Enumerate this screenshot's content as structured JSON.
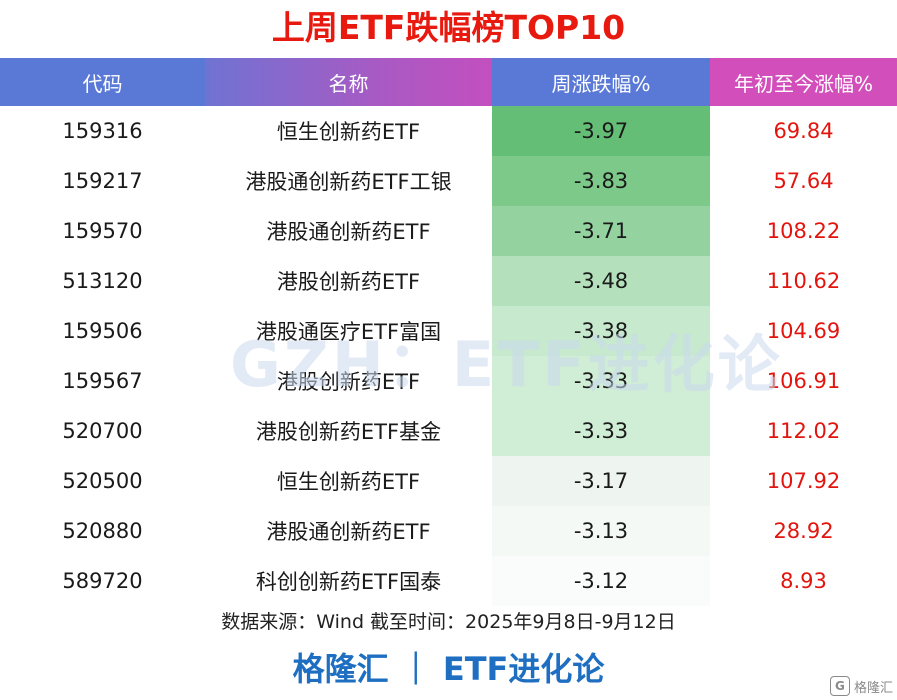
{
  "title": "上周ETF跌幅榜TOP10",
  "table": {
    "headers": [
      "代码",
      "名称",
      "周涨跌幅%",
      "年初至今涨幅%"
    ],
    "rows": [
      {
        "code": "159316",
        "name": "恒生创新药ETF",
        "week": "-3.97",
        "ytd": "69.84",
        "shade": "#64be75"
      },
      {
        "code": "159217",
        "name": "港股通创新药ETF工银",
        "week": "-3.83",
        "ytd": "57.64",
        "shade": "#7cc98a"
      },
      {
        "code": "159570",
        "name": "港股通创新药ETF",
        "week": "-3.71",
        "ytd": "108.22",
        "shade": "#94d3a0"
      },
      {
        "code": "513120",
        "name": "港股创新药ETF",
        "week": "-3.48",
        "ytd": "110.62",
        "shade": "#b4e1bc"
      },
      {
        "code": "159506",
        "name": "港股通医疗ETF富国",
        "week": "-3.38",
        "ytd": "104.69",
        "shade": "#c7e9cd"
      },
      {
        "code": "159567",
        "name": "港股创新药ETF",
        "week": "-3.33",
        "ytd": "106.91",
        "shade": "#d0edd5"
      },
      {
        "code": "520700",
        "name": "港股创新药ETF基金",
        "week": "-3.33",
        "ytd": "112.02",
        "shade": "#d0edd5"
      },
      {
        "code": "520500",
        "name": "恒生创新药ETF",
        "week": "-3.17",
        "ytd": "107.92",
        "shade": "#eef5f0"
      },
      {
        "code": "520880",
        "name": "港股通创新药ETF",
        "week": "-3.13",
        "ytd": "28.92",
        "shade": "#f5f9f6"
      },
      {
        "code": "589720",
        "name": "科创创新药ETF国泰",
        "week": "-3.12",
        "ytd": "8.93",
        "shade": "#fafcfb"
      }
    ]
  },
  "watermark": "GZH：ETF进化论",
  "source": "数据来源：Wind 截至时间：2025年9月8日-9月12日",
  "footer": "格隆汇 ｜ ETF进化论",
  "corner_logo": "格隆汇",
  "colors": {
    "title": "#e8190f",
    "ytd": "#e3140d",
    "footer": "#1e6fc1",
    "header_blue": "#5a79d6",
    "header_pink": "#d24fbb"
  }
}
